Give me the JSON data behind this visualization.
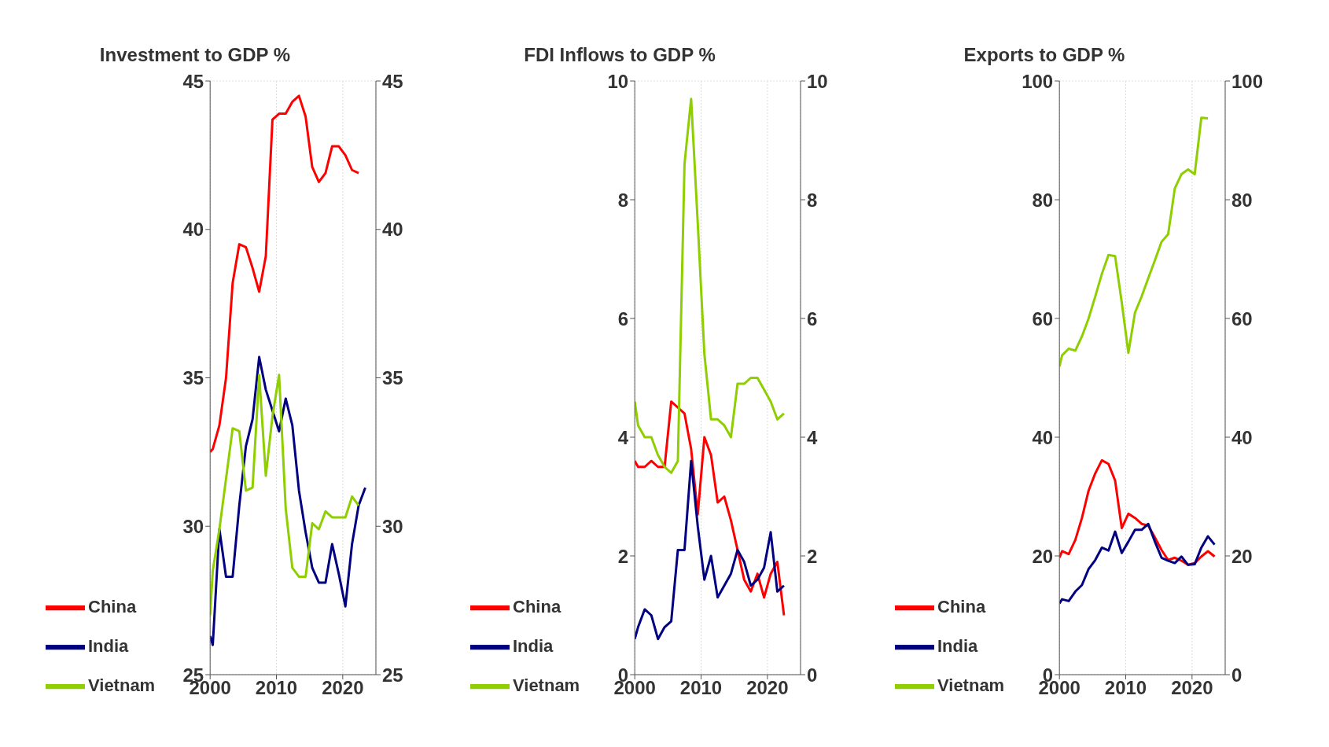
{
  "chart_data": [
    {
      "type": "line",
      "title": "Investment to GDP %",
      "xlim": [
        2000,
        2025
      ],
      "xticks": [
        2000,
        2010,
        2020
      ],
      "ylim": [
        25,
        45
      ],
      "yticks": [
        25,
        30,
        35,
        40,
        45
      ],
      "y2lim": [
        25,
        45
      ],
      "y2ticks": [
        25,
        30,
        35,
        40,
        45
      ],
      "grid": true,
      "legend": "bottom left",
      "series": [
        {
          "name": "China",
          "color": "#ff0000",
          "x": [
            2000,
            2000.4,
            2001.4,
            2002.4,
            2003.4,
            2004.4,
            2005.4,
            2006.4,
            2007.4,
            2008.4,
            2009.4,
            2010.4,
            2011.4,
            2012.4,
            2013.4,
            2014.4,
            2015.4,
            2016.4,
            2017.4,
            2018.4,
            2019.4,
            2020.4,
            2021.4,
            2022.4
          ],
          "values": [
            32.5,
            32.6,
            33.4,
            35.0,
            38.2,
            39.5,
            39.4,
            38.7,
            37.9,
            39.1,
            43.7,
            43.9,
            43.9,
            44.3,
            44.5,
            43.8,
            42.1,
            41.6,
            41.9,
            42.8,
            42.8,
            42.5,
            42.0,
            41.9
          ]
        },
        {
          "name": "India",
          "color": "#000080",
          "x": [
            2000,
            2000.4,
            2001.4,
            2002.4,
            2003.4,
            2004.4,
            2005.4,
            2006.4,
            2007.4,
            2008.4,
            2009.4,
            2010.4,
            2011.4,
            2012.4,
            2013.4,
            2014.4,
            2015.4,
            2016.4,
            2017.4,
            2018.4,
            2019.4,
            2020.4,
            2021.4,
            2022.4,
            2023.4
          ],
          "values": [
            26.3,
            26.0,
            29.9,
            28.3,
            28.3,
            30.7,
            32.7,
            33.6,
            35.7,
            34.6,
            33.9,
            33.2,
            34.3,
            33.4,
            31.2,
            29.8,
            28.6,
            28.1,
            28.1,
            29.4,
            28.4,
            27.3,
            29.4,
            30.7,
            31.3
          ]
        },
        {
          "name": "Vietnam",
          "color": "#8fce00",
          "x": [
            2000,
            2000.4,
            2001.4,
            2002.4,
            2003.4,
            2004.4,
            2005.4,
            2006.4,
            2007.4,
            2008.4,
            2009.4,
            2010.4,
            2011.4,
            2012.4,
            2013.4,
            2014.4,
            2015.4,
            2016.4,
            2017.4,
            2018.4,
            2019.4,
            2020.4,
            2021.4,
            2022.4
          ],
          "values": [
            27.0,
            28.5,
            29.9,
            31.6,
            33.3,
            33.2,
            31.2,
            31.3,
            35.1,
            31.7,
            33.7,
            35.1,
            30.6,
            28.6,
            28.3,
            28.3,
            30.1,
            29.9,
            30.5,
            30.3,
            30.3,
            30.3,
            31.0,
            30.7
          ]
        }
      ]
    },
    {
      "type": "line",
      "title": "FDI Inflows to GDP %",
      "xlim": [
        2000,
        2025
      ],
      "xticks": [
        2000,
        2010,
        2020
      ],
      "ylim": [
        0,
        10
      ],
      "yticks": [
        0,
        2,
        4,
        6,
        8,
        10
      ],
      "y2lim": [
        0,
        10
      ],
      "y2ticks": [
        0,
        2,
        4,
        6,
        8,
        10
      ],
      "grid": true,
      "legend": "bottom left",
      "series": [
        {
          "name": "China",
          "color": "#ff0000",
          "x": [
            2000,
            2000.5,
            2001.5,
            2002.5,
            2003.5,
            2004.5,
            2005.5,
            2006.5,
            2007.5,
            2008.5,
            2009.5,
            2010.5,
            2011.5,
            2012.5,
            2013.5,
            2014.5,
            2015.5,
            2016.5,
            2017.5,
            2018.5,
            2019.5,
            2020.5,
            2021.5,
            2022.5
          ],
          "values": [
            3.6,
            3.5,
            3.5,
            3.6,
            3.5,
            3.5,
            4.6,
            4.5,
            4.4,
            3.8,
            2.7,
            4.0,
            3.7,
            2.9,
            3.0,
            2.6,
            2.1,
            1.6,
            1.4,
            1.7,
            1.3,
            1.7,
            1.9,
            1.0
          ]
        },
        {
          "name": "India",
          "color": "#000080",
          "x": [
            2000,
            2000.5,
            2001.5,
            2002.5,
            2003.5,
            2004.5,
            2005.5,
            2006.5,
            2007.5,
            2008.5,
            2009.5,
            2010.5,
            2011.5,
            2012.5,
            2013.5,
            2014.5,
            2015.5,
            2016.5,
            2017.5,
            2018.5,
            2019.5,
            2020.5,
            2021.5,
            2022.5
          ],
          "values": [
            0.6,
            0.8,
            1.1,
            1.0,
            0.6,
            0.8,
            0.9,
            2.1,
            2.1,
            3.6,
            2.5,
            1.6,
            2.0,
            1.3,
            1.5,
            1.7,
            2.1,
            1.9,
            1.5,
            1.6,
            1.8,
            2.4,
            1.4,
            1.5
          ]
        },
        {
          "name": "Vietnam",
          "color": "#8fce00",
          "x": [
            2000,
            2000.5,
            2001.5,
            2002.5,
            2003.5,
            2004.5,
            2005.5,
            2006.5,
            2007.5,
            2008.5,
            2009.5,
            2010.5,
            2011.5,
            2012.5,
            2013.5,
            2014.5,
            2015.5,
            2016.5,
            2017.5,
            2018.5,
            2019.5,
            2020.5,
            2021.5,
            2022.5
          ],
          "values": [
            4.6,
            4.2,
            4.0,
            4.0,
            3.7,
            3.5,
            3.4,
            3.6,
            8.6,
            9.7,
            7.6,
            5.4,
            4.3,
            4.3,
            4.2,
            4.0,
            4.9,
            4.9,
            5.0,
            5.0,
            4.8,
            4.6,
            4.3,
            4.4
          ]
        }
      ]
    },
    {
      "type": "line",
      "title": "Exports to GDP %",
      "xlim": [
        2000,
        2025
      ],
      "xticks": [
        2000,
        2010,
        2020
      ],
      "ylim": [
        0,
        100
      ],
      "yticks": [
        0,
        20,
        40,
        60,
        80,
        100
      ],
      "y2lim": [
        0,
        100
      ],
      "y2ticks": [
        0,
        20,
        40,
        60,
        80,
        100
      ],
      "grid": true,
      "legend": "bottom left",
      "series": [
        {
          "name": "China",
          "color": "#ff0000",
          "x": [
            2000,
            2000.4,
            2001.4,
            2002.4,
            2003.4,
            2004.4,
            2005.4,
            2006.4,
            2007.4,
            2008.4,
            2009.4,
            2010.4,
            2011.4,
            2012.4,
            2013.4,
            2014.4,
            2015.4,
            2016.4,
            2017.4,
            2018.4,
            2019.4,
            2020.4,
            2021.4,
            2022.4,
            2023.4
          ],
          "values": [
            19.7,
            20.8,
            20.3,
            22.7,
            26.4,
            31.0,
            33.9,
            36.1,
            35.5,
            32.7,
            24.7,
            27.1,
            26.4,
            25.4,
            25.1,
            23.1,
            21.0,
            19.3,
            19.7,
            19.2,
            18.5,
            18.8,
            19.9,
            20.8,
            19.9
          ]
        },
        {
          "name": "India",
          "color": "#000080",
          "x": [
            2000,
            2000.4,
            2001.4,
            2002.4,
            2003.4,
            2004.4,
            2005.4,
            2006.4,
            2007.4,
            2008.4,
            2009.4,
            2010.4,
            2011.4,
            2012.4,
            2013.4,
            2014.4,
            2015.4,
            2016.4,
            2017.4,
            2018.4,
            2019.4,
            2020.4,
            2021.4,
            2022.4,
            2023.4
          ],
          "values": [
            12.0,
            12.7,
            12.4,
            14.0,
            15.1,
            17.8,
            19.3,
            21.4,
            20.9,
            24.1,
            20.5,
            22.4,
            24.4,
            24.4,
            25.4,
            22.4,
            19.7,
            19.2,
            18.8,
            19.9,
            18.5,
            18.6,
            21.4,
            23.3,
            21.9
          ]
        },
        {
          "name": "Vietnam",
          "color": "#8fce00",
          "x": [
            2000,
            2000.4,
            2001.4,
            2002.4,
            2003.4,
            2004.4,
            2005.4,
            2006.4,
            2007.4,
            2008.4,
            2009.4,
            2010.4,
            2011.4,
            2012.4,
            2013.4,
            2014.4,
            2015.4,
            2016.4,
            2017.4,
            2018.4,
            2019.4,
            2020.4,
            2021.4,
            2022.4
          ],
          "values": [
            51.9,
            53.8,
            54.9,
            54.6,
            57.0,
            60.0,
            63.7,
            67.5,
            70.7,
            70.5,
            62.7,
            54.2,
            61.0,
            63.7,
            66.8,
            69.8,
            72.9,
            74.2,
            81.9,
            84.3,
            85.1,
            84.3,
            93.8,
            93.7
          ]
        }
      ]
    }
  ]
}
